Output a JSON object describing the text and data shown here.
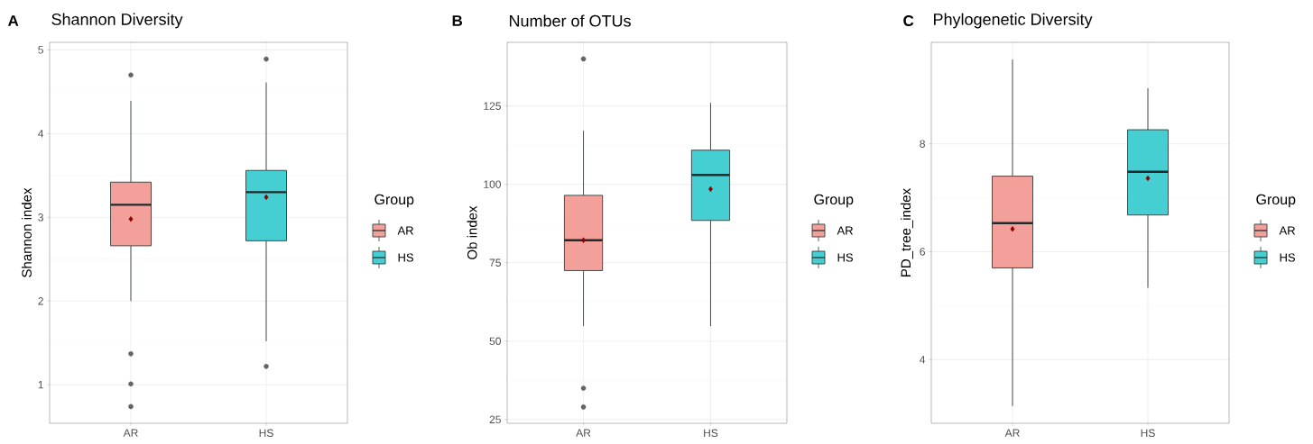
{
  "chart_data": [
    {
      "type": "box",
      "title": "Shannon Diversity",
      "annotations": [
        "A"
      ],
      "ylabel": "Shannon index",
      "categories": [
        "AR",
        "HS"
      ],
      "ylim": [
        0.54,
        5.09
      ],
      "yticks": [
        1,
        2,
        3,
        4,
        5
      ],
      "grid": true,
      "legend": "right",
      "legend_title": "Group",
      "series": [
        {
          "name": "AR",
          "color": "#f4a09a",
          "boxes": [
            {
              "low": 2.0,
              "q1": 2.66,
              "median": 3.15,
              "q3": 3.42,
              "high": 4.39,
              "mean": 2.98,
              "outliers": [
                4.7,
                1.37,
                1.01,
                0.74
              ]
            },
            null
          ]
        },
        {
          "name": "HS",
          "color": "#45cfd2",
          "boxes": [
            null,
            {
              "low": 1.52,
              "q1": 2.72,
              "median": 3.3,
              "q3": 3.56,
              "high": 4.61,
              "mean": 3.24,
              "outliers": [
                4.89,
                1.22
              ]
            }
          ]
        }
      ]
    },
    {
      "type": "box",
      "title": "Number of OTUs",
      "annotations": [
        "B"
      ],
      "ylabel": "Ob index",
      "categories": [
        "AR",
        "HS"
      ],
      "ylim": [
        23.8,
        145.3
      ],
      "yticks": [
        25,
        50,
        75,
        100,
        125
      ],
      "grid": true,
      "legend": "right",
      "legend_title": "Group",
      "series": [
        {
          "name": "AR",
          "color": "#f4a09a",
          "boxes": [
            {
              "low": 54.8,
              "q1": 72.5,
              "median": 82.2,
              "q3": 96.5,
              "high": 117.1,
              "mean": 82.2,
              "outliers": [
                140.0,
                35.0,
                29.0
              ]
            },
            null
          ]
        },
        {
          "name": "HS",
          "color": "#45cfd2",
          "boxes": [
            null,
            {
              "low": 54.8,
              "q1": 88.5,
              "median": 103.0,
              "q3": 110.9,
              "high": 126.0,
              "mean": 98.5
            }
          ]
        }
      ]
    },
    {
      "type": "box",
      "title": "Phylogenetic Diversity",
      "annotations": [
        "C"
      ],
      "ylabel": "PD_tree_index",
      "categories": [
        "AR",
        "HS"
      ],
      "ylim": [
        2.82,
        9.88
      ],
      "yticks": [
        4,
        6,
        8
      ],
      "grid": true,
      "legend": "right",
      "legend_title": "Group",
      "series": [
        {
          "name": "AR",
          "color": "#f4a09a",
          "boxes": [
            {
              "low": 3.14,
              "q1": 5.7,
              "median": 6.53,
              "q3": 7.4,
              "high": 9.56,
              "mean": 6.42
            },
            null
          ]
        },
        {
          "name": "HS",
          "color": "#45cfd2",
          "boxes": [
            null,
            {
              "low": 5.33,
              "q1": 6.68,
              "median": 7.48,
              "q3": 8.26,
              "high": 9.03,
              "mean": 7.36
            }
          ]
        }
      ]
    }
  ]
}
